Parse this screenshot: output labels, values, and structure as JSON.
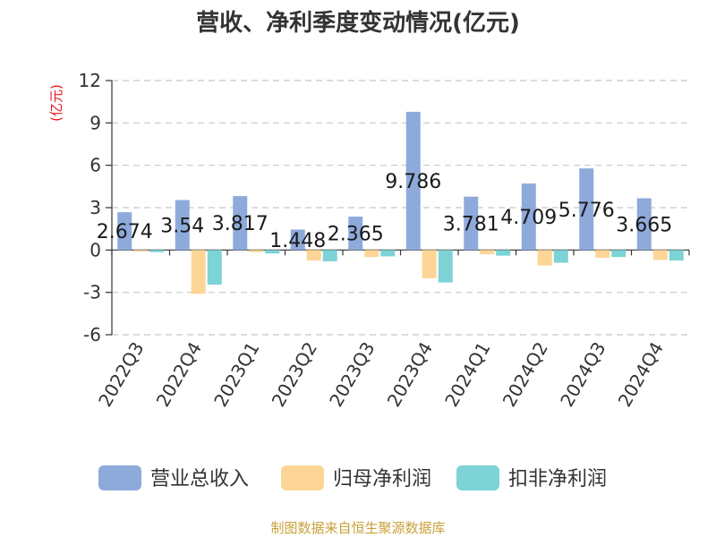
{
  "chart_data": {
    "type": "bar",
    "title": "营收、净利季度变动情况(亿元)",
    "ylabel": "(亿元)",
    "ylim": [
      -6,
      12
    ],
    "yticks": [
      12,
      9,
      6,
      3,
      0,
      -3,
      -6
    ],
    "grid": true,
    "legend_position": "bottom",
    "categories": [
      "2022Q3",
      "2022Q4",
      "2023Q1",
      "2023Q2",
      "2023Q3",
      "2023Q4",
      "2024Q1",
      "2024Q2",
      "2024Q3",
      "2024Q4"
    ],
    "series": [
      {
        "name": "营业总收入",
        "color": "#8eaadb",
        "values": [
          2.674,
          3.54,
          3.817,
          1.448,
          2.365,
          9.786,
          3.781,
          4.709,
          5.776,
          3.665
        ],
        "labels": [
          "2.674",
          "3.54",
          "3.817",
          "1.448",
          "2.365",
          "9.786",
          "3.781",
          "4.709",
          "5.776",
          "3.665"
        ]
      },
      {
        "name": "归母净利润",
        "color": "#fdd596",
        "values": [
          -0.1,
          -3.1,
          -0.15,
          -0.75,
          -0.5,
          -2.0,
          -0.3,
          -1.1,
          -0.55,
          -0.7
        ]
      },
      {
        "name": "扣非净利润",
        "color": "#7dd3d6",
        "values": [
          -0.15,
          -2.45,
          -0.25,
          -0.8,
          -0.45,
          -2.3,
          -0.4,
          -0.9,
          -0.5,
          -0.75
        ]
      }
    ]
  },
  "source": "制图数据来自恒生聚源数据库"
}
